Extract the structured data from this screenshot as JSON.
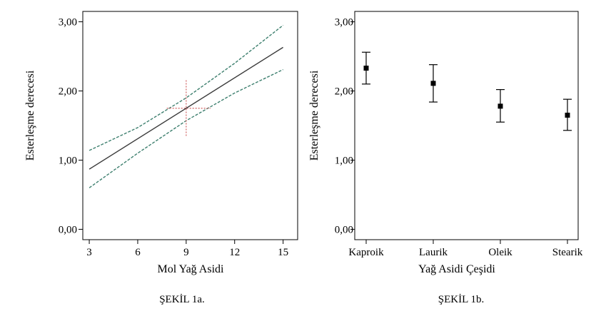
{
  "chart_data": [
    {
      "type": "line",
      "caption": "ŞEKİL 1a.",
      "xlabel": "Mol Yağ Asidi",
      "ylabel": "Esterleşme derecesi",
      "xlim": [
        2.6,
        15.9
      ],
      "ylim": [
        -0.15,
        3.15
      ],
      "xticks": [
        3,
        6,
        9,
        12,
        15
      ],
      "xtick_labels": [
        "3",
        "6",
        "9",
        "12",
        "15"
      ],
      "yticks": [
        0,
        1,
        2,
        3
      ],
      "ytick_labels": [
        "0,00",
        "1,00",
        "2,00",
        "3,00"
      ],
      "grid": false,
      "fit_line": {
        "x": [
          3,
          15
        ],
        "y": [
          0.87,
          2.63
        ],
        "color": "#3a3a3a"
      },
      "confidence_band_upper": {
        "x": [
          3,
          6,
          9,
          12,
          15
        ],
        "y": [
          1.14,
          1.47,
          1.9,
          2.4,
          2.95
        ],
        "color": "#3d7f6e"
      },
      "confidence_band_lower": {
        "x": [
          3,
          6,
          9,
          12,
          15
        ],
        "y": [
          0.6,
          1.1,
          1.57,
          1.97,
          2.31
        ],
        "color": "#3d7f6e"
      },
      "mean_cross": {
        "x": 9,
        "y": 1.75,
        "x_range": [
          7.8,
          10.5
        ],
        "y_range": [
          1.35,
          2.16
        ],
        "color": "#d06060"
      }
    },
    {
      "type": "scatter",
      "caption": "ŞEKİL 1b.",
      "xlabel": "Yağ Asidi Çeşidi",
      "ylabel": "Esterleşme derecesi",
      "ylim": [
        -0.15,
        3.15
      ],
      "yticks": [
        0,
        1,
        2,
        3
      ],
      "ytick_labels": [
        "0,00",
        "1,00",
        "2,00",
        "3,00"
      ],
      "grid": false,
      "categories": [
        "Kaproik",
        "Laurik",
        "Oleik",
        "Stearik"
      ],
      "values": [
        2.33,
        2.11,
        1.78,
        1.65
      ],
      "error_high": [
        2.56,
        2.38,
        2.02,
        1.88
      ],
      "error_low": [
        2.1,
        1.84,
        1.55,
        1.43
      ],
      "color": "#000000"
    }
  ]
}
